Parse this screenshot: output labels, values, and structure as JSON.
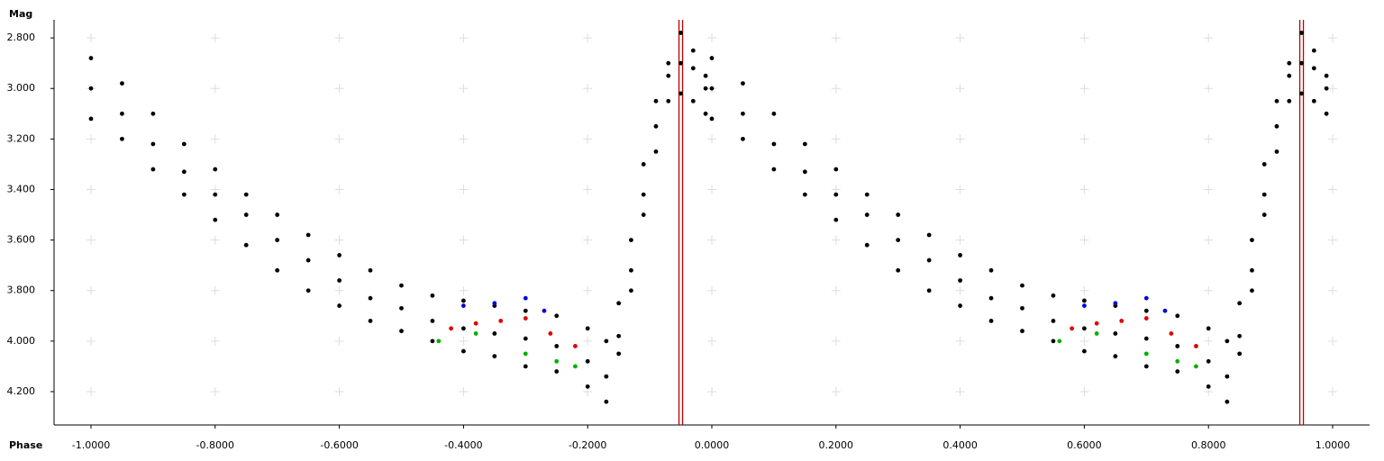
{
  "chart_data": {
    "type": "scatter",
    "y_label": "Mag",
    "x_label": "Phase",
    "xlim": [
      -1.0595,
      1.0595
    ],
    "ylim": [
      4.332,
      2.739
    ],
    "invert_y": true,
    "grid": true,
    "xticks": [
      {
        "value": -1,
        "label": "-1.0000"
      },
      {
        "value": -0.8,
        "label": "-0.8000"
      },
      {
        "value": -0.6,
        "label": "-0.6000"
      },
      {
        "value": -0.4,
        "label": "-0.4000"
      },
      {
        "value": -0.2,
        "label": "-0.2000"
      },
      {
        "value": 0,
        "label": "0.0000"
      },
      {
        "value": 0.2,
        "label": "0.2000"
      },
      {
        "value": 0.4,
        "label": "0.4000"
      },
      {
        "value": 0.6,
        "label": "0.6000"
      },
      {
        "value": 0.8,
        "label": "0.8000"
      },
      {
        "value": 1,
        "label": "1.0000"
      }
    ],
    "yticks": [
      {
        "value": 2.8,
        "label": "2.800"
      },
      {
        "value": 3,
        "label": "3.000"
      },
      {
        "value": 3.2,
        "label": "3.200"
      },
      {
        "value": 3.4,
        "label": "3.400"
      },
      {
        "value": 3.6,
        "label": "3.600"
      },
      {
        "value": 3.8,
        "label": "3.800"
      },
      {
        "value": 4,
        "label": "4.000"
      },
      {
        "value": 4.2,
        "label": "4.200"
      }
    ],
    "vlines": [
      -0.05,
      0.95
    ],
    "vline_color": "#c00000",
    "series": [
      {
        "color": "#000000",
        "x": [
          -1.0,
          -0.95,
          -0.9,
          -0.85,
          -0.8,
          -0.75,
          -0.7,
          -0.65,
          -0.6,
          -0.55,
          -0.5,
          -0.45,
          -0.4,
          -0.35,
          -0.3,
          -0.25,
          -0.2,
          -0.17,
          -0.15,
          -0.13,
          -0.11,
          -0.09,
          -0.07,
          -0.05,
          -0.03,
          -0.01
        ],
        "values": [
          3.0,
          3.1,
          3.22,
          3.33,
          3.42,
          3.5,
          3.6,
          3.68,
          3.76,
          3.83,
          3.87,
          3.92,
          3.95,
          3.97,
          3.99,
          4.02,
          4.08,
          4.14,
          3.98,
          3.72,
          3.42,
          3.15,
          2.95,
          2.78,
          2.85,
          2.95
        ]
      },
      {
        "color": "#000000",
        "x": [
          -1.0,
          -0.95,
          -0.9,
          -0.85,
          -0.8,
          -0.75,
          -0.7,
          -0.65,
          -0.6,
          -0.55,
          -0.5,
          -0.45,
          -0.4,
          -0.35,
          -0.3,
          -0.25,
          -0.2,
          -0.17,
          -0.15,
          -0.13,
          -0.11,
          -0.09,
          -0.07,
          -0.05,
          -0.03,
          -0.01
        ],
        "values": [
          2.88,
          2.98,
          3.1,
          3.22,
          3.32,
          3.42,
          3.5,
          3.58,
          3.66,
          3.72,
          3.78,
          3.82,
          3.84,
          3.86,
          3.88,
          3.9,
          3.95,
          4.0,
          3.85,
          3.6,
          3.3,
          3.05,
          2.9,
          2.9,
          2.92,
          3.0
        ]
      },
      {
        "color": "#000000",
        "x": [
          -1.0,
          -0.95,
          -0.9,
          -0.85,
          -0.8,
          -0.75,
          -0.7,
          -0.65,
          -0.6,
          -0.55,
          -0.5,
          -0.45,
          -0.4,
          -0.35,
          -0.3,
          -0.25,
          -0.2,
          -0.17,
          -0.15,
          -0.13,
          -0.11,
          -0.09,
          -0.07,
          -0.05,
          -0.03,
          -0.01
        ],
        "values": [
          3.12,
          3.2,
          3.32,
          3.42,
          3.52,
          3.62,
          3.72,
          3.8,
          3.86,
          3.92,
          3.96,
          4.0,
          4.04,
          4.06,
          4.1,
          4.12,
          4.18,
          4.24,
          4.05,
          3.8,
          3.5,
          3.25,
          3.05,
          3.02,
          3.05,
          3.1
        ]
      },
      {
        "color": "#000000",
        "x": [
          0.0,
          0.05,
          0.1,
          0.15,
          0.2,
          0.25,
          0.3,
          0.35,
          0.4,
          0.45,
          0.5,
          0.55,
          0.6,
          0.65,
          0.7,
          0.75,
          0.8,
          0.83,
          0.85,
          0.87,
          0.89,
          0.91,
          0.93,
          0.95,
          0.97,
          0.99
        ],
        "values": [
          3.0,
          3.1,
          3.22,
          3.33,
          3.42,
          3.5,
          3.6,
          3.68,
          3.76,
          3.83,
          3.87,
          3.92,
          3.95,
          3.97,
          3.99,
          4.02,
          4.08,
          4.14,
          3.98,
          3.72,
          3.42,
          3.15,
          2.95,
          2.78,
          2.85,
          2.95
        ]
      },
      {
        "color": "#000000",
        "x": [
          0.0,
          0.05,
          0.1,
          0.15,
          0.2,
          0.25,
          0.3,
          0.35,
          0.4,
          0.45,
          0.5,
          0.55,
          0.6,
          0.65,
          0.7,
          0.75,
          0.8,
          0.83,
          0.85,
          0.87,
          0.89,
          0.91,
          0.93,
          0.95,
          0.97,
          0.99
        ],
        "values": [
          2.88,
          2.98,
          3.1,
          3.22,
          3.32,
          3.42,
          3.5,
          3.58,
          3.66,
          3.72,
          3.78,
          3.82,
          3.84,
          3.86,
          3.88,
          3.9,
          3.95,
          4.0,
          3.85,
          3.6,
          3.3,
          3.05,
          2.9,
          2.9,
          2.92,
          3.0
        ]
      },
      {
        "color": "#000000",
        "x": [
          0.0,
          0.05,
          0.1,
          0.15,
          0.2,
          0.25,
          0.3,
          0.35,
          0.4,
          0.45,
          0.5,
          0.55,
          0.6,
          0.65,
          0.7,
          0.75,
          0.8,
          0.83,
          0.85,
          0.87,
          0.89,
          0.91,
          0.93,
          0.95,
          0.97,
          0.99
        ],
        "values": [
          3.12,
          3.2,
          3.32,
          3.42,
          3.52,
          3.62,
          3.72,
          3.8,
          3.86,
          3.92,
          3.96,
          4.0,
          4.04,
          4.06,
          4.1,
          4.12,
          4.18,
          4.24,
          4.05,
          3.8,
          3.5,
          3.25,
          3.05,
          3.02,
          3.05,
          3.1
        ]
      },
      {
        "color": "#e00000",
        "x": [
          -0.42,
          -0.38,
          -0.34,
          -0.3,
          -0.26,
          -0.22,
          0.58,
          0.62,
          0.66,
          0.7,
          0.74,
          0.78
        ],
        "values": [
          3.95,
          3.93,
          3.92,
          3.91,
          3.97,
          4.02,
          3.95,
          3.93,
          3.92,
          3.91,
          3.97,
          4.02
        ]
      },
      {
        "color": "#0000e0",
        "x": [
          -0.4,
          -0.35,
          -0.3,
          -0.27,
          0.6,
          0.65,
          0.7,
          0.73
        ],
        "values": [
          3.86,
          3.85,
          3.83,
          3.88,
          3.86,
          3.85,
          3.83,
          3.88
        ]
      },
      {
        "color": "#00b000",
        "x": [
          -0.44,
          -0.38,
          -0.3,
          -0.25,
          -0.22,
          0.56,
          0.62,
          0.7,
          0.75,
          0.78
        ],
        "values": [
          4.0,
          3.97,
          4.05,
          4.08,
          4.1,
          4.0,
          3.97,
          4.05,
          4.08,
          4.1
        ]
      }
    ]
  }
}
